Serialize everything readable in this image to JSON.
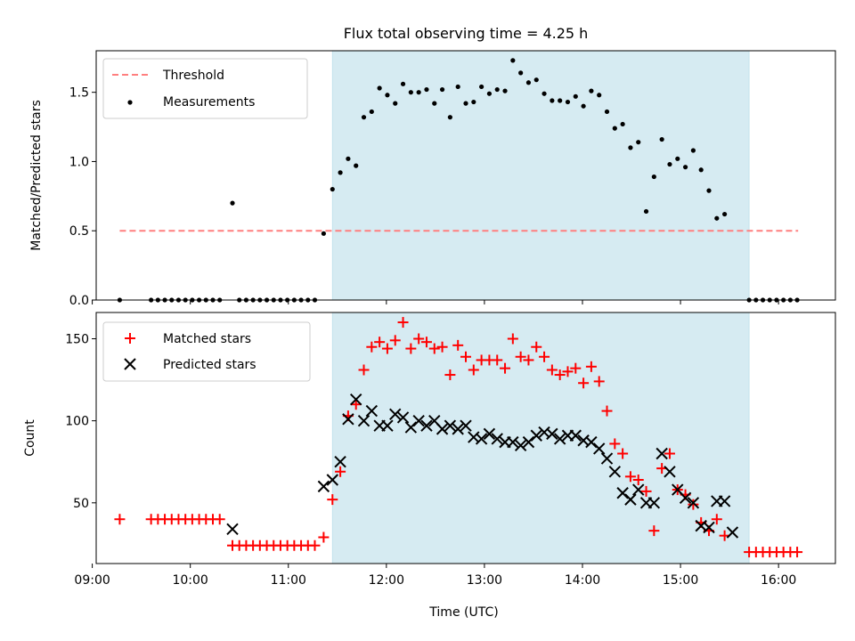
{
  "chart_data": {
    "title": "Flux total observing time = 4.25 h",
    "xlabel": "Time (UTC)",
    "x_unit": "hours UTC",
    "xlim": [
      9.04,
      16.58
    ],
    "x_ticks": [
      {
        "value": 9,
        "label": "09:00"
      },
      {
        "value": 10,
        "label": "10:00"
      },
      {
        "value": 11,
        "label": "11:00"
      },
      {
        "value": 12,
        "label": "12:00"
      },
      {
        "value": 13,
        "label": "13:00"
      },
      {
        "value": 14,
        "label": "14:00"
      },
      {
        "value": 15,
        "label": "15:00"
      },
      {
        "value": 16,
        "label": "16:00"
      }
    ],
    "shaded_span": {
      "start": 11.45,
      "end": 15.7,
      "color": "#add8e6"
    },
    "colors": {
      "threshold": "#ff7f7f",
      "measurement": "#000000",
      "matched": "#ff0000",
      "predicted": "#000000"
    },
    "top": {
      "type": "scatter",
      "ylabel": "Matched/Predicted stars",
      "ylim": [
        0,
        1.8
      ],
      "y_ticks": [
        0.0,
        0.5,
        1.0,
        1.5
      ],
      "y_tick_labels": [
        "0.0",
        "0.5",
        "1.0",
        "1.5"
      ],
      "legend": {
        "position": "upper-left",
        "entries": [
          "Threshold",
          "Measurements"
        ]
      },
      "threshold": {
        "name": "Threshold",
        "value": 0.5,
        "x_range": [
          9.28,
          16.2
        ]
      },
      "measurements": {
        "name": "Measurements",
        "points": [
          [
            9.28,
            0.0
          ],
          [
            9.6,
            0.0
          ],
          [
            9.67,
            0.0
          ],
          [
            9.74,
            0.0
          ],
          [
            9.81,
            0.0
          ],
          [
            9.88,
            0.0
          ],
          [
            9.95,
            0.0
          ],
          [
            10.02,
            0.0
          ],
          [
            10.09,
            0.0
          ],
          [
            10.16,
            0.0
          ],
          [
            10.23,
            0.0
          ],
          [
            10.3,
            0.0
          ],
          [
            10.43,
            0.7
          ],
          [
            10.5,
            0.0
          ],
          [
            10.57,
            0.0
          ],
          [
            10.64,
            0.0
          ],
          [
            10.71,
            0.0
          ],
          [
            10.78,
            0.0
          ],
          [
            10.85,
            0.0
          ],
          [
            10.92,
            0.0
          ],
          [
            10.99,
            0.0
          ],
          [
            11.06,
            0.0
          ],
          [
            11.13,
            0.0
          ],
          [
            11.2,
            0.0
          ],
          [
            11.27,
            0.0
          ],
          [
            11.36,
            0.48
          ],
          [
            11.45,
            0.8
          ],
          [
            11.53,
            0.92
          ],
          [
            11.61,
            1.02
          ],
          [
            11.69,
            0.97
          ],
          [
            11.77,
            1.32
          ],
          [
            11.85,
            1.36
          ],
          [
            11.93,
            1.53
          ],
          [
            12.01,
            1.48
          ],
          [
            12.09,
            1.42
          ],
          [
            12.17,
            1.56
          ],
          [
            12.25,
            1.5
          ],
          [
            12.33,
            1.5
          ],
          [
            12.41,
            1.52
          ],
          [
            12.49,
            1.42
          ],
          [
            12.57,
            1.52
          ],
          [
            12.65,
            1.32
          ],
          [
            12.73,
            1.54
          ],
          [
            12.81,
            1.42
          ],
          [
            12.89,
            1.43
          ],
          [
            12.97,
            1.54
          ],
          [
            13.05,
            1.49
          ],
          [
            13.13,
            1.52
          ],
          [
            13.21,
            1.51
          ],
          [
            13.29,
            1.73
          ],
          [
            13.37,
            1.64
          ],
          [
            13.45,
            1.57
          ],
          [
            13.53,
            1.59
          ],
          [
            13.61,
            1.49
          ],
          [
            13.69,
            1.44
          ],
          [
            13.77,
            1.44
          ],
          [
            13.85,
            1.43
          ],
          [
            13.93,
            1.47
          ],
          [
            14.01,
            1.4
          ],
          [
            14.09,
            1.51
          ],
          [
            14.17,
            1.48
          ],
          [
            14.25,
            1.36
          ],
          [
            14.33,
            1.24
          ],
          [
            14.41,
            1.27
          ],
          [
            14.49,
            1.1
          ],
          [
            14.57,
            1.14
          ],
          [
            14.65,
            0.64
          ],
          [
            14.73,
            0.89
          ],
          [
            14.81,
            1.16
          ],
          [
            14.89,
            0.98
          ],
          [
            14.97,
            1.02
          ],
          [
            15.05,
            0.96
          ],
          [
            15.13,
            1.08
          ],
          [
            15.21,
            0.94
          ],
          [
            15.29,
            0.79
          ],
          [
            15.37,
            0.59
          ],
          [
            15.45,
            0.62
          ],
          [
            15.7,
            0.0
          ],
          [
            15.77,
            0.0
          ],
          [
            15.84,
            0.0
          ],
          [
            15.91,
            0.0
          ],
          [
            15.98,
            0.0
          ],
          [
            16.05,
            0.0
          ],
          [
            16.12,
            0.0
          ],
          [
            16.19,
            0.0
          ]
        ]
      }
    },
    "bottom": {
      "type": "scatter",
      "ylabel": "Count",
      "ylim": [
        13,
        166
      ],
      "y_ticks": [
        50,
        100,
        150
      ],
      "y_tick_labels": [
        "50",
        "100",
        "150"
      ],
      "legend": {
        "position": "upper-left",
        "entries": [
          "Matched stars",
          "Predicted stars"
        ]
      },
      "matched": {
        "name": "Matched stars",
        "points": [
          [
            9.28,
            40
          ],
          [
            9.6,
            40
          ],
          [
            9.67,
            40
          ],
          [
            9.74,
            40
          ],
          [
            9.81,
            40
          ],
          [
            9.88,
            40
          ],
          [
            9.95,
            40
          ],
          [
            10.02,
            40
          ],
          [
            10.09,
            40
          ],
          [
            10.16,
            40
          ],
          [
            10.23,
            40
          ],
          [
            10.3,
            40
          ],
          [
            10.43,
            24
          ],
          [
            10.5,
            24
          ],
          [
            10.57,
            24
          ],
          [
            10.64,
            24
          ],
          [
            10.71,
            24
          ],
          [
            10.78,
            24
          ],
          [
            10.85,
            24
          ],
          [
            10.92,
            24
          ],
          [
            10.99,
            24
          ],
          [
            11.06,
            24
          ],
          [
            11.13,
            24
          ],
          [
            11.2,
            24
          ],
          [
            11.27,
            24
          ],
          [
            11.36,
            29
          ],
          [
            11.45,
            52
          ],
          [
            11.53,
            69
          ],
          [
            11.61,
            103
          ],
          [
            11.69,
            110
          ],
          [
            11.77,
            131
          ],
          [
            11.85,
            145
          ],
          [
            11.93,
            148
          ],
          [
            12.01,
            144
          ],
          [
            12.09,
            149
          ],
          [
            12.17,
            160
          ],
          [
            12.25,
            144
          ],
          [
            12.33,
            150
          ],
          [
            12.41,
            148
          ],
          [
            12.49,
            144
          ],
          [
            12.57,
            145
          ],
          [
            12.65,
            128
          ],
          [
            12.73,
            146
          ],
          [
            12.81,
            139
          ],
          [
            12.89,
            131
          ],
          [
            12.97,
            137
          ],
          [
            13.05,
            137
          ],
          [
            13.13,
            137
          ],
          [
            13.21,
            132
          ],
          [
            13.29,
            150
          ],
          [
            13.37,
            139
          ],
          [
            13.45,
            137
          ],
          [
            13.53,
            145
          ],
          [
            13.61,
            139
          ],
          [
            13.69,
            131
          ],
          [
            13.77,
            128
          ],
          [
            13.85,
            130
          ],
          [
            13.93,
            132
          ],
          [
            14.01,
            123
          ],
          [
            14.09,
            133
          ],
          [
            14.17,
            124
          ],
          [
            14.25,
            106
          ],
          [
            14.33,
            86
          ],
          [
            14.41,
            80
          ],
          [
            14.49,
            66
          ],
          [
            14.57,
            64
          ],
          [
            14.65,
            57
          ],
          [
            14.73,
            33
          ],
          [
            14.81,
            71
          ],
          [
            14.89,
            80
          ],
          [
            14.97,
            58
          ],
          [
            15.05,
            55
          ],
          [
            15.13,
            49
          ],
          [
            15.21,
            38
          ],
          [
            15.29,
            33
          ],
          [
            15.37,
            40
          ],
          [
            15.45,
            30
          ],
          [
            15.7,
            20
          ],
          [
            15.77,
            20
          ],
          [
            15.84,
            20
          ],
          [
            15.91,
            20
          ],
          [
            15.98,
            20
          ],
          [
            16.05,
            20
          ],
          [
            16.12,
            20
          ],
          [
            16.19,
            20
          ]
        ]
      },
      "predicted": {
        "name": "Predicted stars",
        "points": [
          [
            10.43,
            34
          ],
          [
            11.36,
            60
          ],
          [
            11.45,
            64
          ],
          [
            11.53,
            75
          ],
          [
            11.61,
            101
          ],
          [
            11.69,
            113
          ],
          [
            11.77,
            100
          ],
          [
            11.85,
            106
          ],
          [
            11.93,
            97
          ],
          [
            12.01,
            97
          ],
          [
            12.09,
            104
          ],
          [
            12.17,
            102
          ],
          [
            12.25,
            96
          ],
          [
            12.33,
            100
          ],
          [
            12.41,
            97
          ],
          [
            12.49,
            100
          ],
          [
            12.57,
            95
          ],
          [
            12.65,
            97
          ],
          [
            12.73,
            95
          ],
          [
            12.81,
            97
          ],
          [
            12.89,
            90
          ],
          [
            12.97,
            89
          ],
          [
            13.05,
            92
          ],
          [
            13.13,
            89
          ],
          [
            13.21,
            87
          ],
          [
            13.29,
            87
          ],
          [
            13.37,
            85
          ],
          [
            13.45,
            87
          ],
          [
            13.53,
            91
          ],
          [
            13.61,
            93
          ],
          [
            13.69,
            92
          ],
          [
            13.77,
            89
          ],
          [
            13.85,
            91
          ],
          [
            13.93,
            91
          ],
          [
            14.01,
            88
          ],
          [
            14.09,
            87
          ],
          [
            14.17,
            83
          ],
          [
            14.25,
            77
          ],
          [
            14.33,
            69
          ],
          [
            14.41,
            56
          ],
          [
            14.49,
            52
          ],
          [
            14.57,
            58
          ],
          [
            14.65,
            50
          ],
          [
            14.73,
            50
          ],
          [
            14.81,
            80
          ],
          [
            14.89,
            69
          ],
          [
            14.97,
            58
          ],
          [
            15.05,
            53
          ],
          [
            15.13,
            50
          ],
          [
            15.21,
            36
          ],
          [
            15.29,
            35
          ],
          [
            15.37,
            51
          ],
          [
            15.45,
            51
          ],
          [
            15.53,
            32
          ]
        ]
      }
    }
  }
}
